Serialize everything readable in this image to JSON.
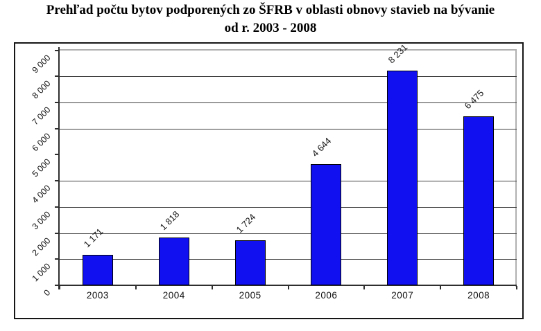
{
  "chart_data": {
    "type": "bar",
    "title": "Prehľad počtu bytov podporených zo ŠFRB v oblasti obnovy stavieb na bývanie od r. 2003 - 2008",
    "title_lines": [
      "Prehľad počtu bytov podporených zo ŠFRB v oblasti obnovy stavieb na bývanie",
      "od r. 2003 - 2008"
    ],
    "categories": [
      "2003",
      "2004",
      "2005",
      "2006",
      "2007",
      "2008"
    ],
    "values": [
      1171,
      1818,
      1724,
      4644,
      8231,
      6475
    ],
    "data_labels": [
      "1 171",
      "1 818",
      "1 724",
      "4 644",
      "8 231",
      "6 475"
    ],
    "xlabel": "",
    "ylabel": "",
    "legend": "none",
    "grid": true,
    "y_axis": {
      "min": 0,
      "max": 9000,
      "tick_interval": 1000,
      "tick_labels": [
        "0",
        "1 000",
        "2 000",
        "3 000",
        "4 000",
        "5 000",
        "6 000",
        "7 000",
        "8 000",
        "9 000"
      ],
      "tick_label_rotation_deg": -45,
      "gridline_missing_at": 5000
    },
    "data_label_rotation_deg": -45,
    "colors": {
      "bar_fill": "#1010f0",
      "bar_border": "#000000",
      "gridline": "#3d3d3d",
      "axis": "#2e2e2e",
      "plot_border": "#b0b0b0",
      "frame_border": "#161616",
      "text": "#111111",
      "background": "#ffffff"
    }
  }
}
